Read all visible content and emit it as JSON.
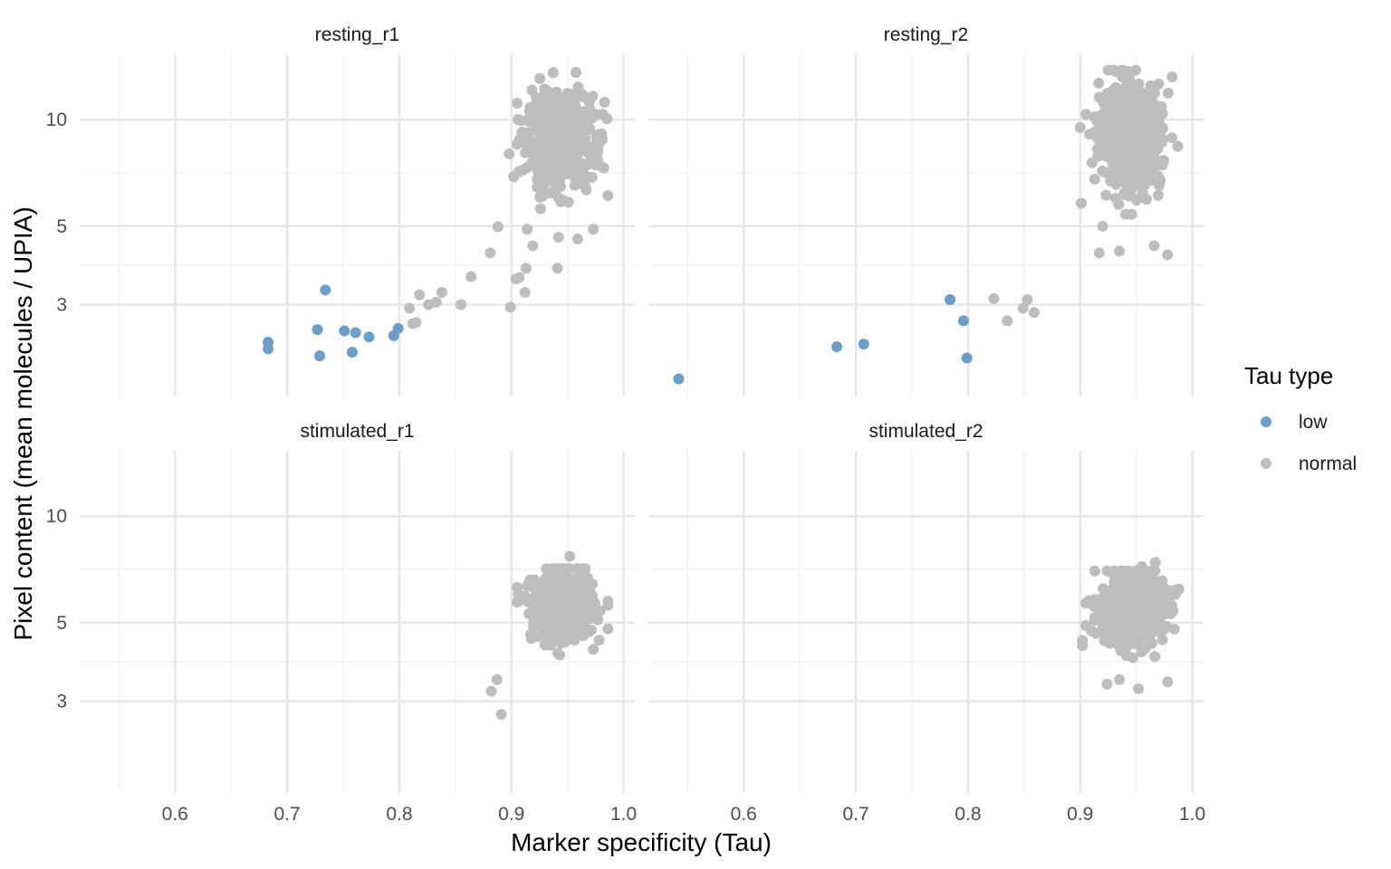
{
  "chart_data": {
    "type": "scatter",
    "xlabel": "Marker specificity (Tau)",
    "ylabel": "Pixel content (mean molecules / UPIA)",
    "y_scale": "log",
    "xlim": [
      0.515,
      1.01
    ],
    "ylim": [
      1.65,
      15.3
    ],
    "x_ticks": [
      0.6,
      0.7,
      0.8,
      0.9,
      1.0
    ],
    "x_tick_labels": [
      "0.6",
      "0.7",
      "0.8",
      "0.9",
      "1.0"
    ],
    "y_ticks": [
      3,
      5,
      10
    ],
    "y_tick_labels": [
      "3",
      "5",
      "10"
    ],
    "grid": true,
    "facet_layout": "2x2, shared axes",
    "legend": {
      "title": "Tau type",
      "position": "right",
      "entries": [
        {
          "label": "low",
          "color": "#6a9fcb"
        },
        {
          "label": "normal",
          "color": "#bdbdbd"
        }
      ]
    },
    "panels": [
      {
        "title": "resting_r1",
        "low": [
          [
            0.683,
            2.35
          ],
          [
            0.683,
            2.25
          ],
          [
            0.727,
            2.55
          ],
          [
            0.729,
            2.15
          ],
          [
            0.734,
            3.3
          ],
          [
            0.751,
            2.53
          ],
          [
            0.758,
            2.2
          ],
          [
            0.761,
            2.5
          ],
          [
            0.773,
            2.43
          ],
          [
            0.795,
            2.45
          ],
          [
            0.799,
            2.57
          ]
        ],
        "normal_sparse": [
          [
            0.809,
            2.93
          ],
          [
            0.812,
            2.65
          ],
          [
            0.815,
            2.67
          ],
          [
            0.818,
            3.2
          ],
          [
            0.826,
            3.0
          ],
          [
            0.833,
            3.05
          ],
          [
            0.838,
            3.25
          ],
          [
            0.855,
            3.0
          ],
          [
            0.864,
            3.6
          ],
          [
            0.881,
            4.2
          ],
          [
            0.888,
            4.98
          ],
          [
            0.899,
            2.95
          ],
          [
            0.904,
            3.55
          ],
          [
            0.907,
            3.58
          ],
          [
            0.912,
            3.25
          ],
          [
            0.913,
            3.8
          ],
          [
            0.914,
            4.9
          ],
          [
            0.919,
            4.4
          ],
          [
            0.941,
            3.8
          ],
          [
            0.942,
            4.65
          ],
          [
            0.959,
            4.6
          ],
          [
            0.973,
            4.9
          ],
          [
            0.898,
            8.0
          ],
          [
            0.902,
            6.9
          ],
          [
            0.986,
            6.1
          ],
          [
            0.983,
            11.2
          ]
        ],
        "normal_cluster": {
          "x_center": 0.943,
          "x_sd": 0.0145,
          "x_range": [
            0.905,
            0.986
          ],
          "y_center": 8.7,
          "y_log_sd": 0.15,
          "y_range": [
            5.6,
            13.6
          ],
          "n": 600
        }
      },
      {
        "title": "resting_r2",
        "low": [
          [
            0.542,
            1.85
          ],
          [
            0.683,
            2.28
          ],
          [
            0.707,
            2.32
          ],
          [
            0.784,
            3.1
          ],
          [
            0.796,
            2.7
          ],
          [
            0.799,
            2.12
          ]
        ],
        "normal_sparse": [
          [
            0.823,
            3.12
          ],
          [
            0.835,
            2.7
          ],
          [
            0.849,
            2.93
          ],
          [
            0.853,
            3.1
          ],
          [
            0.859,
            2.85
          ],
          [
            0.901,
            5.8
          ],
          [
            0.9,
            9.5
          ],
          [
            0.92,
            5.0
          ],
          [
            0.917,
            4.2
          ],
          [
            0.935,
            4.25
          ],
          [
            0.966,
            4.4
          ],
          [
            0.978,
            4.15
          ],
          [
            0.987,
            8.4
          ],
          [
            0.982,
            13.2
          ]
        ],
        "normal_cluster": {
          "x_center": 0.945,
          "x_sd": 0.0135,
          "x_range": [
            0.905,
            0.988
          ],
          "y_center": 9.0,
          "y_log_sd": 0.16,
          "y_range": [
            5.4,
            13.8
          ],
          "n": 600
        }
      },
      {
        "title": "stimulated_r1",
        "low": [],
        "normal_sparse": [
          [
            0.882,
            3.2
          ],
          [
            0.887,
            3.45
          ],
          [
            0.891,
            2.75
          ],
          [
            0.943,
            4.05
          ],
          [
            0.952,
            7.7
          ],
          [
            0.973,
            4.2
          ],
          [
            0.986,
            4.8
          ]
        ],
        "normal_cluster": {
          "x_center": 0.946,
          "x_sd": 0.0135,
          "x_range": [
            0.905,
            0.986
          ],
          "y_center": 5.55,
          "y_log_sd": 0.105,
          "y_range": [
            4.1,
            7.1
          ],
          "n": 600
        }
      },
      {
        "title": "stimulated_r2",
        "low": [],
        "normal_sparse": [
          [
            0.902,
            4.45
          ],
          [
            0.902,
            4.3
          ],
          [
            0.924,
            3.35
          ],
          [
            0.935,
            3.45
          ],
          [
            0.952,
            3.25
          ],
          [
            0.955,
            7.2
          ],
          [
            0.967,
            7.4
          ],
          [
            0.978,
            3.4
          ],
          [
            0.986,
            6.2
          ]
        ],
        "normal_cluster": {
          "x_center": 0.946,
          "x_sd": 0.014,
          "x_range": [
            0.905,
            0.988
          ],
          "y_center": 5.45,
          "y_log_sd": 0.11,
          "y_range": [
            3.8,
            7.0
          ],
          "n": 600
        }
      }
    ]
  }
}
